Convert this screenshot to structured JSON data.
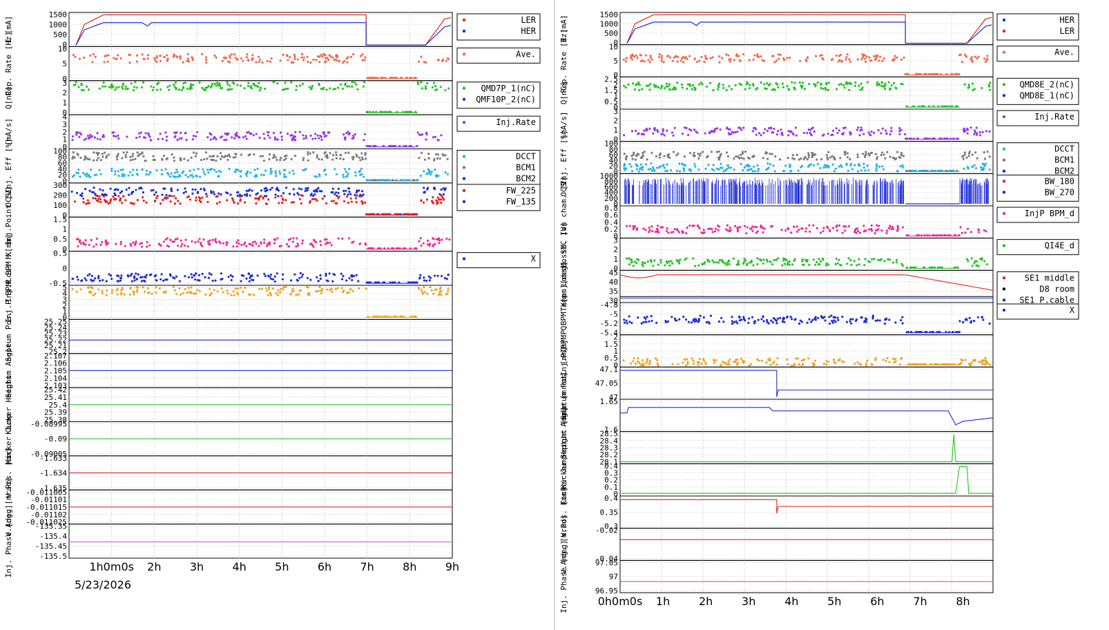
{
  "colors": {
    "red": "#e8201c",
    "blue": "#1c2bd8",
    "salmon": "#f06a4d",
    "green": "#22c422",
    "royal": "#3a66d6",
    "purple": "#9a36e8",
    "cyan": "#22b4e8",
    "black": "#101010",
    "gray": "#7a7a7a",
    "pink": "#f02a96",
    "orange": "#f2a41e",
    "magenta": "#d24ad8"
  },
  "chart_data": [
    {
      "type": "line",
      "name": "left-panel",
      "date_label": "5/23/2026",
      "x_tick_labels": [
        "1h0m0s",
        "2h",
        "3h",
        "4h",
        "5h",
        "6h",
        "7h",
        "8h",
        "9h"
      ],
      "rows": [
        {
          "ylabel": "I [mA]",
          "yticks": [
            "1500",
            "1000",
            "500",
            "0"
          ],
          "legend": [
            "LER",
            "HER"
          ],
          "series": [
            {
              "name": "LER",
              "color": "red",
              "kind": "beam",
              "level": 1550
            },
            {
              "name": "HER",
              "color": "blue",
              "kind": "beam",
              "level": 1150
            }
          ],
          "ylim": [
            0,
            1600
          ]
        },
        {
          "ylabel": "Rep. Rate [Hz]",
          "yticks": [
            "10",
            "5",
            "0"
          ],
          "legend": [
            "Ave."
          ],
          "series": [
            {
              "name": "Ave.",
              "color": "salmon",
              "kind": "scatter",
              "level": 8
            }
          ],
          "ylim": [
            0,
            12
          ]
        },
        {
          "ylabel": "Q[nC]",
          "yticks": [
            "3",
            "2",
            "1",
            "0"
          ],
          "legend": [
            "QMD7P_1(nC)",
            "QMF10P_2(nC)"
          ],
          "series": [
            {
              "name": "QMD7P_1(nC)",
              "color": "green",
              "kind": "scatter",
              "level": 2.6
            }
          ],
          "ylim": [
            0,
            3
          ]
        },
        {
          "ylabel": "[mA/s]",
          "yticks": [
            "4",
            "3",
            "2",
            "1",
            "0"
          ],
          "legend": [
            "Inj.Rate"
          ],
          "series": [
            {
              "name": "Inj.Rate",
              "color": "purple",
              "kind": "scatter",
              "level": 1.8
            }
          ],
          "ylim": [
            0,
            5
          ]
        },
        {
          "ylabel": "Inj. Eff [%]",
          "yticks": [
            "100",
            "80",
            "60",
            "40",
            "20",
            "0"
          ],
          "legend": [
            "DCCT",
            "BCM1",
            "BCM2"
          ],
          "series": [
            {
              "name": "BCM1",
              "color": "gray",
              "kind": "scatter",
              "level": 88
            },
            {
              "name": "DCCT",
              "color": "cyan",
              "kind": "scatter",
              "level": 30
            }
          ],
          "ylim": [
            0,
            110
          ]
        },
        {
          "ylabel": "OCS",
          "yticks": [
            "300",
            "200",
            "100",
            "0"
          ],
          "legend": [
            "FW_225",
            "FW_135"
          ],
          "series": [
            {
              "name": "FW_135",
              "color": "blue",
              "kind": "scatter",
              "level": 250
            },
            {
              "name": "FW_225",
              "color": "red",
              "kind": "scatter",
              "level": 170
            }
          ],
          "ylim": [
            0,
            330
          ]
        },
        {
          "ylabel": "Loss M. Inj.Point [V]",
          "yticks": [
            "1.5",
            "1",
            "0.5",
            "0"
          ],
          "legend": [],
          "series": [
            {
              "name": "pink",
              "color": "pink",
              "kind": "scatter",
              "level": 0.35
            }
          ],
          "ylim": [
            0,
            1.5
          ]
        },
        {
          "ylabel": "Inj.P BPM X[mm]",
          "yticks": [
            "0.5",
            "0",
            "-0.5"
          ],
          "legend": [
            "X"
          ],
          "series": [
            {
              "name": "X",
              "color": "blue",
              "kind": "scatter",
              "level": -0.45
            }
          ],
          "ylim": [
            -0.7,
            0.5
          ]
        },
        {
          "ylabel": "Inj.P BPM",
          "yticks": [
            "5",
            "4",
            "3",
            "2",
            "1",
            "0"
          ],
          "legend": [],
          "series": [
            {
              "name": "orange",
              "color": "orange",
              "kind": "scatter",
              "level": 4.3
            }
          ],
          "ylim": [
            0,
            5
          ]
        },
        {
          "ylabel": "Septum Pos.",
          "yticks": [
            "25.25",
            "25.24",
            "25.23",
            "25.22",
            "25.21",
            "25.2"
          ],
          "legend": [],
          "series": [
            {
              "name": "pos",
              "color": "blue",
              "kind": "flat",
              "level": 25.223
            }
          ],
          "ylim": [
            25.2,
            25.26
          ]
        },
        {
          "ylabel": "Septum Angle",
          "yticks": [
            "2.107",
            "2.106",
            "2.105",
            "2.104",
            "2.103"
          ],
          "legend": [],
          "series": [
            {
              "name": "angle",
              "color": "blue",
              "kind": "flat",
              "level": 2.105
            }
          ],
          "ylim": [
            2.1025,
            2.1075
          ]
        },
        {
          "ylabel": "Kicker Height",
          "yticks": [
            "25.42",
            "25.41",
            "25.4",
            "25.39",
            "25.38"
          ],
          "legend": [],
          "series": [
            {
              "name": "height",
              "color": "green",
              "kind": "flat",
              "level": 25.4
            }
          ],
          "ylim": [
            25.375,
            25.425
          ]
        },
        {
          "ylabel": "Kicker Jump",
          "yticks": [
            "-0.08995",
            "-0.09",
            "-0.09005"
          ],
          "legend": [],
          "series": [
            {
              "name": "jump",
              "color": "green",
              "kind": "flat",
              "level": -0.09
            }
          ],
          "ylim": [
            -0.0901,
            -0.0899
          ]
        },
        {
          "ylabel": "V.Pos. [mm]",
          "yticks": [
            "-1.633",
            "-1.634",
            "-1.635"
          ],
          "legend": [],
          "series": [
            {
              "name": "vpos",
              "color": "red",
              "kind": "flat",
              "level": -1.634
            }
          ],
          "ylim": [
            -1.6355,
            -1.6325
          ]
        },
        {
          "ylabel": "V.Ang. [mrad]",
          "yticks": [
            "-0.011005",
            "-0.01101",
            "-0.011015",
            "-0.01102",
            "-0.011025"
          ],
          "legend": [],
          "series": [
            {
              "name": "vang",
              "color": "red",
              "kind": "flat",
              "level": -0.011015
            }
          ],
          "ylim": [
            -0.01103,
            -0.011
          ]
        },
        {
          "ylabel": "Inj. Phase [deg]",
          "yticks": [
            "-135.35",
            "-135.4",
            "-135.45",
            "-135.5"
          ],
          "legend": [],
          "series": [
            {
              "name": "phase",
              "color": "magenta",
              "kind": "flat",
              "level": -135.43
            }
          ],
          "ylim": [
            -135.52,
            -135.33
          ]
        }
      ]
    },
    {
      "type": "line",
      "name": "right-panel",
      "date_label": "",
      "x_tick_labels": [
        "0h0m0s",
        "1h",
        "2h",
        "3h",
        "4h",
        "5h",
        "6h",
        "7h",
        "8h"
      ],
      "rows": [
        {
          "ylabel": "I [mA]",
          "yticks": [
            "1500",
            "1000",
            "500",
            "0"
          ],
          "legend": [
            "HER",
            "LER"
          ],
          "series": [
            {
              "name": "LER",
              "color": "red",
              "kind": "beam",
              "level": 1550
            },
            {
              "name": "HER",
              "color": "blue",
              "kind": "beam",
              "level": 1150
            }
          ],
          "ylim": [
            0,
            1600
          ]
        },
        {
          "ylabel": "Rep. Rate [Hz]",
          "yticks": [
            "10",
            "5",
            "0"
          ],
          "legend": [
            "Ave."
          ],
          "series": [
            {
              "name": "Ave.",
              "color": "salmon",
              "kind": "scatter",
              "level": 7
            }
          ],
          "ylim": [
            0,
            12
          ]
        },
        {
          "ylabel": "Q[nC]",
          "yticks": [
            "2.5",
            "2",
            "1.5",
            "1",
            "0.5",
            "0"
          ],
          "legend": [
            "QMD8E_2(nC)",
            "QMD8E_1(nC)"
          ],
          "series": [
            {
              "name": "QMD8E_2(nC)",
              "color": "green",
              "kind": "scatter",
              "level": 1.9
            }
          ],
          "ylim": [
            0,
            2.6
          ]
        },
        {
          "ylabel": "[mA/s]",
          "yticks": [
            "3",
            "2",
            "1",
            "0"
          ],
          "legend": [
            "Inj.Rate"
          ],
          "series": [
            {
              "name": "Inj.Rate",
              "color": "purple",
              "kind": "scatter",
              "level": 1.0
            }
          ],
          "ylim": [
            0,
            3.5
          ]
        },
        {
          "ylabel": "Inj. Eff [%]",
          "yticks": [
            "100",
            "80",
            "60",
            "40",
            "20",
            "0"
          ],
          "legend": [
            "DCCT",
            "BCM1",
            "BCM2"
          ],
          "series": [
            {
              "name": "BCM1",
              "color": "gray",
              "kind": "scatter",
              "level": 62
            },
            {
              "name": "DCCT",
              "color": "cyan",
              "kind": "scatter",
              "level": 18
            }
          ],
          "ylim": [
            0,
            110
          ]
        },
        {
          "ylabel": "OCS",
          "yticks": [
            "1000",
            "800",
            "600",
            "400",
            "200",
            "0"
          ],
          "legend": [
            "BW_180",
            "BW_270"
          ],
          "series": [
            {
              "name": "BW_270",
              "color": "blue",
              "kind": "spikes",
              "level": 300
            }
          ],
          "ylim": [
            0,
            1000
          ]
        },
        {
          "ylabel": "LossM. Ion cham. [V]",
          "yticks": [
            "0.8",
            "0.6",
            "0.4",
            "0.2",
            "0"
          ],
          "legend": [
            "InjP BPM_d"
          ],
          "series": [
            {
              "name": "InjP BPM_d",
              "color": "pink",
              "kind": "scatter",
              "level": 0.2
            }
          ],
          "ylim": [
            0,
            0.8
          ]
        },
        {
          "ylabel": "LossM. SiC [V]",
          "yticks": [
            "3",
            "2",
            "1",
            "0"
          ],
          "legend": [
            "QI4E_d"
          ],
          "series": [
            {
              "name": "QI4E_d",
              "color": "green",
              "kind": "scatter",
              "level": 0.7
            }
          ],
          "ylim": [
            0,
            3
          ]
        },
        {
          "ylabel": "Temp. [deg]",
          "yticks": [
            "45",
            "40",
            "35",
            "30"
          ],
          "legend": [
            "SE1 middle",
            "D8 room",
            "SE1 P.cable"
          ],
          "series": [
            {
              "name": "SE1 middle",
              "color": "red",
              "kind": "temp",
              "level": 44
            },
            {
              "name": "D8 room",
              "color": "black",
              "kind": "flat",
              "level": 30
            },
            {
              "name": "SE1 P.cable",
              "color": "blue",
              "kind": "flat",
              "level": 29
            }
          ],
          "ylim": [
            27,
            46
          ]
        },
        {
          "ylabel": "Inj.P BPM X[mm]",
          "yticks": [
            "-4.8",
            "-5",
            "-5.2",
            "-5.4"
          ],
          "legend": [
            "X"
          ],
          "series": [
            {
              "name": "X",
              "color": "blue",
              "kind": "scatter",
              "level": -5.15
            }
          ],
          "ylim": [
            -5.5,
            -4.75
          ]
        },
        {
          "ylabel": "Inj.P BPM Q",
          "yticks": [
            "2",
            "1.5",
            "1",
            "0.5",
            "0"
          ],
          "legend": [],
          "series": [
            {
              "name": "orange",
              "color": "orange",
              "kind": "scatter",
              "level": 0.25
            }
          ],
          "ylim": [
            0,
            2.1
          ]
        },
        {
          "ylabel": "Septum Pos. [mm]",
          "yticks": [
            "47.1",
            "47.05",
            "47"
          ],
          "legend": [],
          "series": [
            {
              "name": "pos",
              "color": "blue",
              "kind": "step",
              "level": 47.1,
              "level2": 47.0
            }
          ],
          "ylim": [
            46.96,
            47.11
          ]
        },
        {
          "ylabel": "Septum Angle [mrad]",
          "yticks": [
            "1.65",
            "1.6"
          ],
          "legend": [],
          "series": [
            {
              "name": "angle",
              "color": "blue",
              "kind": "angle",
              "level": 1.67
            }
          ],
          "ylim": [
            1.57,
            1.7
          ]
        },
        {
          "ylabel": "Kicker Height [mm]",
          "yticks": [
            "28.5",
            "28.4",
            "28.3",
            "28.2",
            "28.1"
          ],
          "legend": [],
          "series": [
            {
              "name": "height",
              "color": "green",
              "kind": "kick",
              "level": 28.06
            }
          ],
          "ylim": [
            28.05,
            28.52
          ]
        },
        {
          "ylabel": "Kicker Jump",
          "yticks": [
            "0.4",
            "0.3",
            "0.2",
            "0.1",
            "0"
          ],
          "legend": [],
          "series": [
            {
              "name": "jump",
              "color": "green",
              "kind": "pulse",
              "level": 0.0
            }
          ],
          "ylim": [
            -0.02,
            0.42
          ]
        },
        {
          "ylabel": "V.Pos. [mm]",
          "yticks": [
            "0.4",
            "0.35",
            "0.3"
          ],
          "legend": [],
          "series": [
            {
              "name": "vpos",
              "color": "red",
              "kind": "dropstep",
              "level": 0.4,
              "level2": 0.37
            }
          ],
          "ylim": [
            0.28,
            0.41
          ]
        },
        {
          "ylabel": "V.Ang. [mrad]",
          "yticks": [
            "-0.02",
            "-0.04"
          ],
          "legend": [],
          "series": [
            {
              "name": "vang",
              "color": "red",
              "kind": "flat",
              "level": -0.022
            }
          ],
          "ylim": [
            -0.055,
            -0.005
          ]
        },
        {
          "ylabel": "Inj. Phase [deg]",
          "yticks": [
            "97.05",
            "97",
            "96.95"
          ],
          "legend": [],
          "series": [
            {
              "name": "phase",
              "color": "magenta",
              "kind": "flat",
              "level": 96.98
            }
          ],
          "ylim": [
            96.93,
            97.08
          ]
        }
      ]
    }
  ]
}
